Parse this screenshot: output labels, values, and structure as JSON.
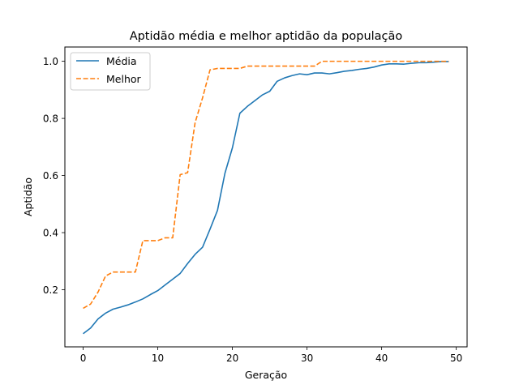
{
  "chart_data": {
    "type": "line",
    "title": "Aptidão média e melhor aptidão da população",
    "xlabel": "Geração",
    "ylabel": "Aptidão",
    "xlim": [
      -2.45,
      51.45
    ],
    "ylim": [
      0.0,
      1.05
    ],
    "xticks": [
      0,
      10,
      20,
      30,
      40,
      50
    ],
    "yticks": [
      0.2,
      0.4,
      0.6,
      0.8,
      1.0
    ],
    "xtick_labels": [
      "0",
      "10",
      "20",
      "30",
      "40",
      "50"
    ],
    "ytick_labels": [
      "0.2",
      "0.4",
      "0.6",
      "0.8",
      "1.0"
    ],
    "grid": false,
    "legend": "top-left",
    "x": [
      0,
      1,
      2,
      3,
      4,
      5,
      6,
      7,
      8,
      9,
      10,
      11,
      12,
      13,
      14,
      15,
      16,
      17,
      18,
      19,
      20,
      21,
      22,
      23,
      24,
      25,
      26,
      27,
      28,
      29,
      30,
      31,
      32,
      33,
      34,
      35,
      36,
      37,
      38,
      39,
      40,
      41,
      42,
      43,
      44,
      45,
      46,
      47,
      48,
      49
    ],
    "series": [
      {
        "name": "Média",
        "color": "#1f77b4",
        "style": "solid",
        "values": [
          0.046,
          0.066,
          0.098,
          0.118,
          0.132,
          0.139,
          0.147,
          0.157,
          0.168,
          0.183,
          0.197,
          0.217,
          0.237,
          0.257,
          0.292,
          0.324,
          0.349,
          0.412,
          0.478,
          0.608,
          0.697,
          0.818,
          0.842,
          0.862,
          0.882,
          0.895,
          0.93,
          0.942,
          0.95,
          0.956,
          0.953,
          0.959,
          0.959,
          0.956,
          0.96,
          0.965,
          0.968,
          0.972,
          0.975,
          0.98,
          0.987,
          0.991,
          0.991,
          0.99,
          0.993,
          0.995,
          0.995,
          0.997,
          0.999,
          0.999
        ]
      },
      {
        "name": "Melhor",
        "color": "#ff7f0e",
        "style": "dashed",
        "values": [
          0.135,
          0.15,
          0.192,
          0.248,
          0.262,
          0.262,
          0.262,
          0.262,
          0.372,
          0.372,
          0.372,
          0.382,
          0.382,
          0.603,
          0.61,
          0.785,
          0.872,
          0.97,
          0.975,
          0.975,
          0.975,
          0.975,
          0.983,
          0.983,
          0.983,
          0.983,
          0.983,
          0.983,
          0.983,
          0.983,
          0.983,
          0.983,
          1.0,
          1.0,
          1.0,
          1.0,
          1.0,
          1.0,
          1.0,
          1.0,
          1.0,
          1.0,
          1.0,
          1.0,
          1.0,
          1.0,
          1.0,
          1.0,
          1.0,
          1.0
        ]
      }
    ]
  }
}
